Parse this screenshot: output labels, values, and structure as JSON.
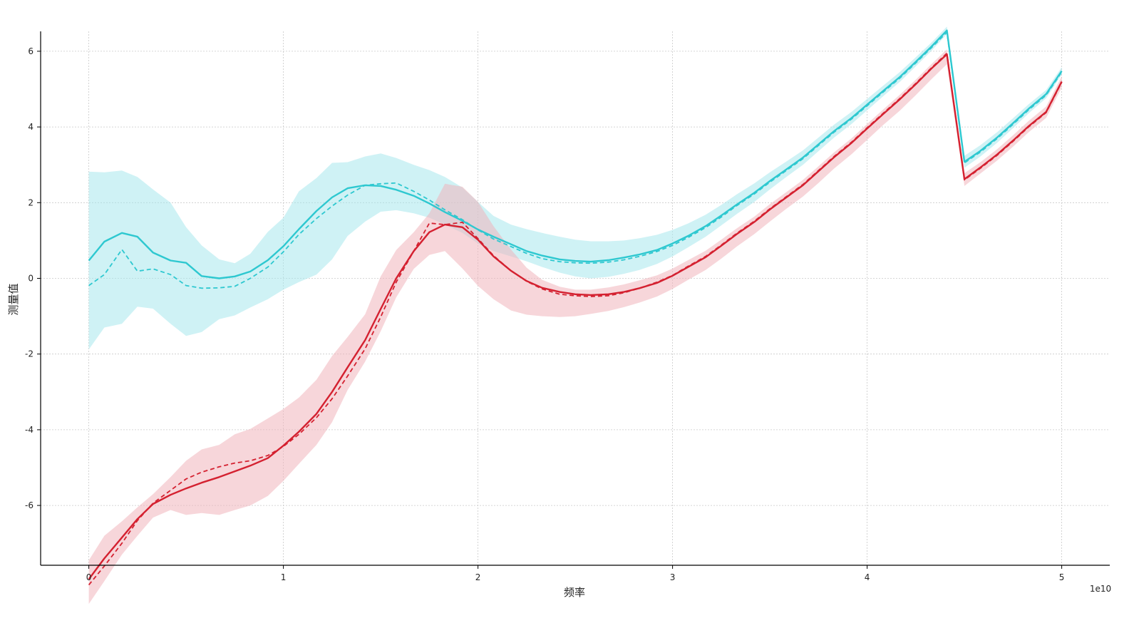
{
  "chart_data": {
    "type": "line",
    "xlabel": "频率",
    "ylabel": "测量值",
    "x_offset_label": "1e10",
    "xlim": [
      -0.25,
      5.25
    ],
    "ylim": [
      -7.6,
      6.5
    ],
    "grid": true,
    "grid_style": "dotted",
    "x_ticks": [
      0,
      1,
      2,
      3,
      4,
      5
    ],
    "x_tick_labels": [
      "0",
      "1",
      "2",
      "3",
      "4",
      "5"
    ],
    "y_ticks": [
      -6,
      -4,
      -2,
      0,
      2,
      4,
      6
    ],
    "y_tick_labels": [
      "-6",
      "-4",
      "-2",
      "0",
      "2",
      "4",
      "6"
    ],
    "x": [
      0,
      0.08,
      0.17,
      0.25,
      0.33,
      0.42,
      0.5,
      0.58,
      0.67,
      0.75,
      0.83,
      0.92,
      1.0,
      1.08,
      1.17,
      1.25,
      1.33,
      1.42,
      1.5,
      1.58,
      1.67,
      1.75,
      1.83,
      1.92,
      2.0,
      2.08,
      2.17,
      2.25,
      2.33,
      2.42,
      2.5,
      2.58,
      2.67,
      2.75,
      2.83,
      2.92,
      3.0,
      3.08,
      3.17,
      3.25,
      3.33,
      3.42,
      3.5,
      3.58,
      3.67,
      3.75,
      3.83,
      3.92,
      4.0,
      4.08,
      4.17,
      4.25,
      4.33,
      4.41,
      4.5,
      4.58,
      4.67,
      4.75,
      4.83,
      4.92,
      5.0
    ],
    "series": [
      {
        "color": "#2ec8d0",
        "band_color": "#a8e8ec",
        "solid": [
          0.47,
          0.97,
          1.2,
          1.1,
          0.68,
          0.47,
          0.41,
          0.06,
          0.0,
          0.05,
          0.18,
          0.48,
          0.85,
          1.3,
          1.78,
          2.14,
          2.38,
          2.46,
          2.44,
          2.34,
          2.18,
          1.98,
          1.75,
          1.52,
          1.29,
          1.1,
          0.9,
          0.72,
          0.6,
          0.5,
          0.46,
          0.44,
          0.48,
          0.55,
          0.63,
          0.75,
          0.92,
          1.12,
          1.38,
          1.66,
          1.95,
          2.26,
          2.57,
          2.86,
          3.19,
          3.54,
          3.89,
          4.24,
          4.59,
          4.94,
          5.33,
          5.72,
          6.12,
          6.55,
          3.08,
          3.36,
          3.73,
          4.1,
          4.48,
          4.87,
          5.48
        ],
        "dashed": [
          -0.19,
          0.1,
          0.76,
          0.19,
          0.25,
          0.1,
          -0.19,
          -0.26,
          -0.25,
          -0.21,
          0.0,
          0.3,
          0.7,
          1.16,
          1.58,
          1.91,
          2.2,
          2.46,
          2.5,
          2.52,
          2.3,
          2.07,
          1.81,
          1.55,
          1.28,
          1.04,
          0.84,
          0.66,
          0.52,
          0.44,
          0.41,
          0.4,
          0.43,
          0.49,
          0.58,
          0.71,
          0.87,
          1.08,
          1.34,
          1.62,
          1.92,
          2.23,
          2.54,
          2.83,
          3.16,
          3.51,
          3.86,
          4.21,
          4.56,
          4.91,
          5.3,
          5.69,
          6.09,
          6.5,
          3.05,
          3.33,
          3.7,
          4.07,
          4.45,
          4.84,
          5.45
        ],
        "upper": [
          2.82,
          2.8,
          2.85,
          2.68,
          2.35,
          2.0,
          1.35,
          0.87,
          0.5,
          0.4,
          0.65,
          1.23,
          1.6,
          2.3,
          2.65,
          3.05,
          3.07,
          3.22,
          3.3,
          3.18,
          3.0,
          2.86,
          2.68,
          2.4,
          2.02,
          1.65,
          1.42,
          1.3,
          1.2,
          1.1,
          1.02,
          0.98,
          0.98,
          1.0,
          1.06,
          1.15,
          1.28,
          1.45,
          1.68,
          1.94,
          2.22,
          2.51,
          2.8,
          3.07,
          3.38,
          3.72,
          4.06,
          4.4,
          4.74,
          5.08,
          5.46,
          5.84,
          6.23,
          6.65,
          3.24,
          3.51,
          3.87,
          4.23,
          4.6,
          4.98,
          5.58
        ],
        "lower": [
          -1.88,
          -1.3,
          -1.2,
          -0.75,
          -0.8,
          -1.2,
          -1.52,
          -1.42,
          -1.08,
          -0.98,
          -0.77,
          -0.55,
          -0.3,
          -0.1,
          0.1,
          0.5,
          1.12,
          1.5,
          1.76,
          1.8,
          1.72,
          1.6,
          1.42,
          1.2,
          0.92,
          0.72,
          0.58,
          0.45,
          0.3,
          0.15,
          0.05,
          0.0,
          0.04,
          0.12,
          0.22,
          0.38,
          0.58,
          0.82,
          1.1,
          1.4,
          1.7,
          2.02,
          2.35,
          2.66,
          3.0,
          3.36,
          3.72,
          4.08,
          4.44,
          4.8,
          5.2,
          5.6,
          6.01,
          6.45,
          2.92,
          3.21,
          3.59,
          3.97,
          4.36,
          4.76,
          5.38
        ]
      },
      {
        "color": "#d42130",
        "band_color": "#f0b5bb",
        "solid": [
          -7.95,
          -7.4,
          -6.85,
          -6.36,
          -5.96,
          -5.72,
          -5.55,
          -5.4,
          -5.25,
          -5.1,
          -4.95,
          -4.75,
          -4.42,
          -4.05,
          -3.58,
          -3.0,
          -2.35,
          -1.63,
          -0.81,
          0.0,
          0.72,
          1.22,
          1.42,
          1.35,
          1.02,
          0.58,
          0.2,
          -0.07,
          -0.25,
          -0.36,
          -0.42,
          -0.44,
          -0.42,
          -0.36,
          -0.26,
          -0.12,
          0.07,
          0.3,
          0.56,
          0.86,
          1.17,
          1.49,
          1.82,
          2.12,
          2.46,
          2.83,
          3.2,
          3.58,
          3.96,
          4.33,
          4.74,
          5.13,
          5.54,
          5.92,
          2.62,
          2.92,
          3.28,
          3.64,
          4.02,
          4.4,
          5.2
        ],
        "dashed": [
          -8.1,
          -7.6,
          -7.0,
          -6.4,
          -5.94,
          -5.6,
          -5.3,
          -5.12,
          -4.98,
          -4.88,
          -4.82,
          -4.68,
          -4.44,
          -4.12,
          -3.68,
          -3.18,
          -2.58,
          -1.86,
          -1.02,
          -0.1,
          0.72,
          1.46,
          1.42,
          1.48,
          1.05,
          0.6,
          0.2,
          -0.08,
          -0.28,
          -0.42,
          -0.46,
          -0.48,
          -0.46,
          -0.38,
          -0.26,
          -0.1,
          0.08,
          0.32,
          0.58,
          0.88,
          1.19,
          1.51,
          1.84,
          2.14,
          2.48,
          2.85,
          3.22,
          3.6,
          3.98,
          4.35,
          4.76,
          5.15,
          5.56,
          5.95,
          2.6,
          2.9,
          3.26,
          3.62,
          4.0,
          4.38,
          5.18
        ],
        "upper": [
          -7.45,
          -6.8,
          -6.42,
          -6.05,
          -5.7,
          -5.25,
          -4.82,
          -4.52,
          -4.4,
          -4.12,
          -3.98,
          -3.7,
          -3.45,
          -3.15,
          -2.68,
          -2.05,
          -1.55,
          -0.95,
          0.05,
          0.75,
          1.22,
          1.72,
          2.5,
          2.42,
          2.02,
          1.38,
          0.76,
          0.28,
          -0.04,
          -0.22,
          -0.3,
          -0.3,
          -0.24,
          -0.16,
          -0.05,
          0.08,
          0.26,
          0.48,
          0.73,
          1.02,
          1.32,
          1.63,
          1.96,
          2.26,
          2.6,
          2.96,
          3.33,
          3.7,
          4.08,
          4.45,
          4.86,
          5.25,
          5.66,
          6.05,
          2.78,
          3.06,
          3.42,
          3.78,
          4.16,
          4.54,
          5.34
        ],
        "lower": [
          -8.6,
          -8.0,
          -7.3,
          -6.8,
          -6.32,
          -6.12,
          -6.25,
          -6.2,
          -6.25,
          -6.12,
          -6.0,
          -5.75,
          -5.35,
          -4.9,
          -4.4,
          -3.8,
          -2.95,
          -2.2,
          -1.4,
          -0.5,
          0.25,
          0.62,
          0.72,
          0.26,
          -0.2,
          -0.55,
          -0.85,
          -0.96,
          -1.0,
          -1.02,
          -1.0,
          -0.94,
          -0.86,
          -0.76,
          -0.64,
          -0.48,
          -0.28,
          -0.04,
          0.22,
          0.52,
          0.84,
          1.17,
          1.5,
          1.82,
          2.16,
          2.52,
          2.9,
          3.28,
          3.66,
          4.04,
          4.44,
          4.84,
          5.26,
          5.66,
          2.44,
          2.76,
          3.12,
          3.48,
          3.86,
          4.24,
          5.04
        ]
      }
    ]
  }
}
